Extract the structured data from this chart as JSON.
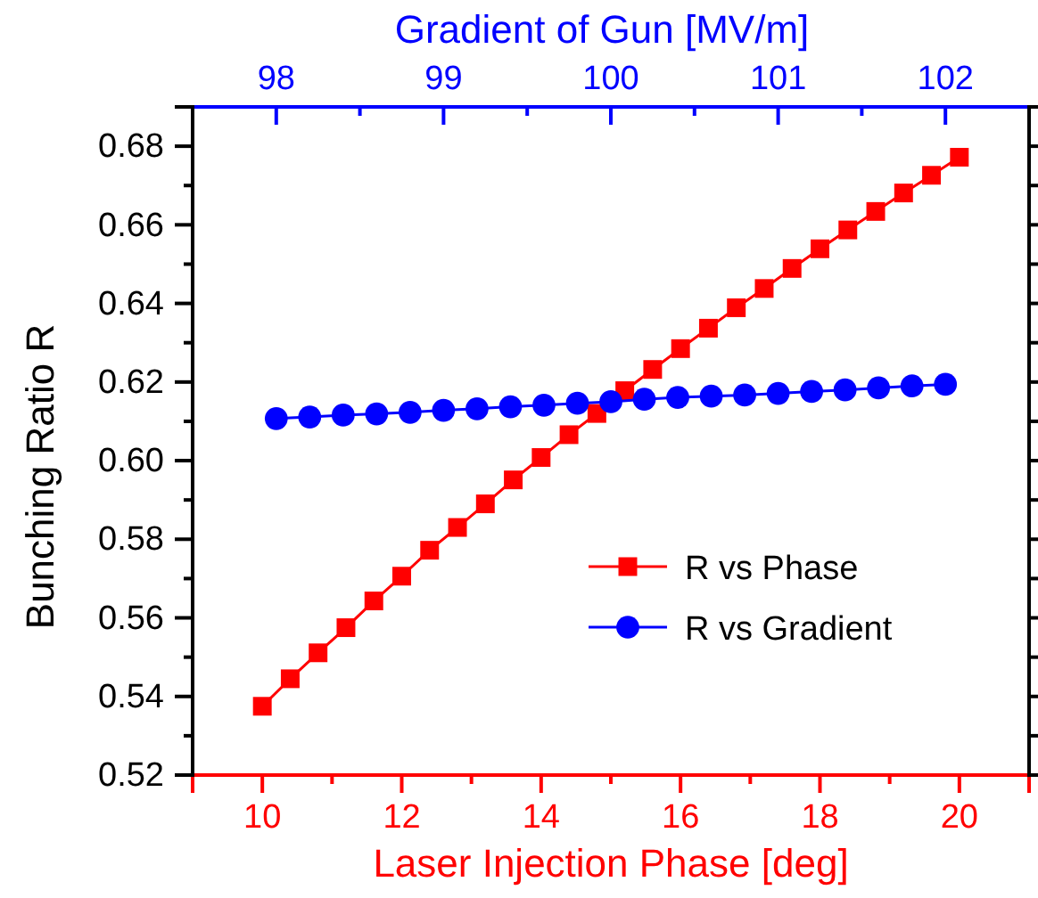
{
  "chart_data": {
    "type": "line",
    "xlabel": "Laser Injection Phase [deg]",
    "x2label": "Gradient of Gun [MV/m]",
    "ylabel": "Bunching Ratio R",
    "xlim": [
      9,
      21
    ],
    "xticks": [
      {
        "value": 9,
        "label": null
      },
      10,
      {
        "value": 11,
        "label": null
      },
      12,
      {
        "value": 13,
        "label": null
      },
      14,
      {
        "value": 15,
        "label": null
      },
      16,
      {
        "value": 17,
        "label": null
      },
      18,
      {
        "value": 19,
        "label": null
      },
      20,
      {
        "value": 21,
        "label": null
      }
    ],
    "x2lim": [
      97.5,
      102.5
    ],
    "x2ticks": [
      {
        "value": 97.5,
        "label": null
      },
      98,
      {
        "value": 98.5,
        "label": null
      },
      99,
      {
        "value": 99.5,
        "label": null
      },
      100,
      {
        "value": 100.5,
        "label": null
      },
      101,
      {
        "value": 101.5,
        "label": null
      },
      102,
      {
        "value": 102.5,
        "label": null
      }
    ],
    "ylim": [
      0.52,
      0.69
    ],
    "yticks": [
      0.52,
      {
        "value": 0.53,
        "label": null
      },
      0.54,
      {
        "value": 0.55,
        "label": null
      },
      0.56,
      {
        "value": 0.57,
        "label": null
      },
      0.58,
      {
        "value": 0.59,
        "label": null
      },
      {
        "value": 0.6,
        "label": "0.60"
      },
      {
        "value": 0.61,
        "label": null
      },
      0.62,
      {
        "value": 0.63,
        "label": null
      },
      0.64,
      {
        "value": 0.65,
        "label": null
      },
      0.66,
      {
        "value": 0.67,
        "label": null
      },
      0.68,
      {
        "value": 0.69,
        "label": null
      }
    ],
    "grid": false,
    "legend": "right",
    "line_style": "solid",
    "series": [
      {
        "name": "R vs Phase",
        "color": "#ff0000",
        "marker": "square",
        "x": [
          10,
          10.4,
          10.8,
          11.2,
          11.6,
          12,
          12.4,
          12.8,
          13.2,
          13.6,
          14,
          14.4,
          14.8,
          15.2,
          15.6,
          16,
          16.4,
          16.8,
          17.2,
          17.6,
          18,
          18.4,
          18.8,
          19.2,
          19.6,
          20
        ],
        "values": [
          0.5375,
          0.5445,
          0.5511,
          0.5575,
          0.5643,
          0.5706,
          0.5772,
          0.583,
          0.589,
          0.5951,
          0.6008,
          0.6066,
          0.612,
          0.6178,
          0.6232,
          0.6285,
          0.6337,
          0.6389,
          0.6438,
          0.6489,
          0.6539,
          0.6587,
          0.6634,
          0.6681,
          0.6726,
          0.6772
        ]
      },
      {
        "name": "R vs Gradient",
        "color": "#0000ff",
        "marker": "circle",
        "axis": "x2",
        "x": [
          98,
          98.2,
          98.4,
          98.6,
          98.8,
          99,
          99.2,
          99.4,
          99.6,
          99.8,
          100,
          100.2,
          100.4,
          100.6,
          100.8,
          101,
          101.2,
          101.4,
          101.6,
          101.8,
          102
        ],
        "values": [
          0.6107,
          0.6111,
          0.6116,
          0.6119,
          0.6123,
          0.6128,
          0.6132,
          0.6137,
          0.6141,
          0.6146,
          0.615,
          0.6156,
          0.6161,
          0.6164,
          0.6167,
          0.6171,
          0.6176,
          0.618,
          0.6185,
          0.619,
          0.6194
        ]
      }
    ]
  }
}
